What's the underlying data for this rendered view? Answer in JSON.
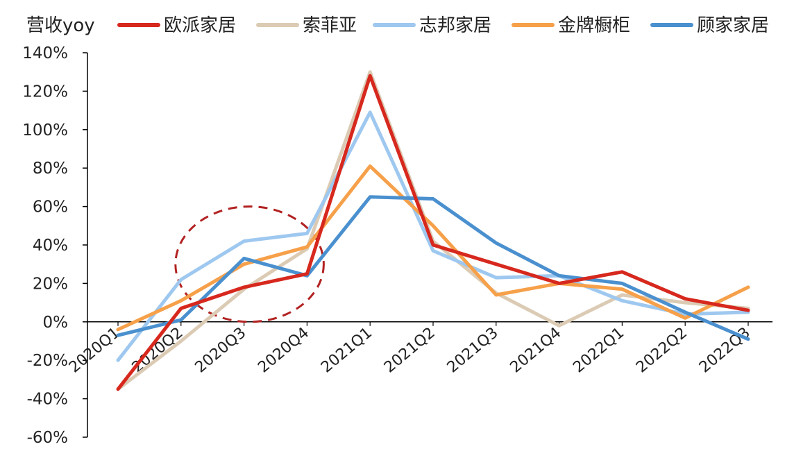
{
  "chart_data": {
    "type": "line",
    "title": "营收yoy",
    "categories": [
      "2020Q1",
      "2020Q2",
      "2020Q3",
      "2020Q4",
      "2021Q1",
      "2021Q2",
      "2021Q3",
      "2021Q4",
      "2022Q1",
      "2022Q2",
      "2022Q3"
    ],
    "yticks": [
      "140%",
      "120%",
      "100%",
      "80%",
      "60%",
      "40%",
      "20%",
      "0%",
      "-20%",
      "-40%",
      "-60%"
    ],
    "ylim": [
      -60,
      140
    ],
    "legend_position": "top",
    "grid": false,
    "series": [
      {
        "name": "欧派家居",
        "color": "#d7281e",
        "values": [
          -35,
          7,
          18,
          25,
          128,
          40,
          30,
          20,
          26,
          12,
          6
        ]
      },
      {
        "name": "索菲亚",
        "color": "#dccbb4",
        "values": [
          -35,
          -10,
          17,
          38,
          130,
          42,
          15,
          -2,
          14,
          10,
          7
        ]
      },
      {
        "name": "志邦家居",
        "color": "#9ec8ef",
        "values": [
          -20,
          22,
          42,
          46,
          109,
          37,
          23,
          24,
          11,
          4,
          5
        ]
      },
      {
        "name": "金牌橱柜",
        "color": "#f6a04a",
        "values": [
          -4,
          11,
          30,
          39,
          81,
          50,
          14,
          20,
          17,
          2,
          18
        ]
      },
      {
        "name": "顾家家居",
        "color": "#4a90cf",
        "values": [
          -7,
          1,
          33,
          24,
          65,
          64,
          41,
          24,
          20,
          5,
          -9
        ]
      }
    ],
    "annotation": {
      "type": "dashed-ellipse",
      "color": "#b22222",
      "center_x_between": [
        "2020Q2",
        "2020Q4"
      ],
      "y_range": [
        0,
        60
      ]
    }
  }
}
